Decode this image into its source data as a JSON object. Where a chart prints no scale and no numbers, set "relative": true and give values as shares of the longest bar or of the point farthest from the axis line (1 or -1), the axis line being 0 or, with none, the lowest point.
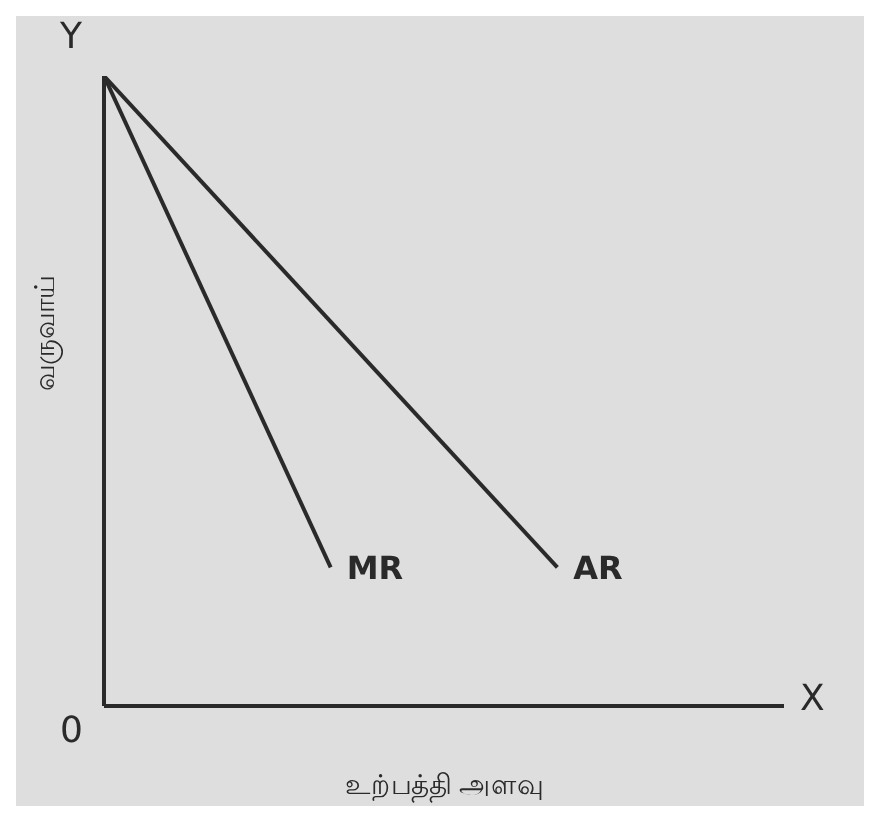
{
  "chart_data": {
    "type": "line",
    "relative": true,
    "xlabel": "உற்பத்தி அளவு",
    "ylabel": "வருவாய்",
    "annotations": [
      "Y",
      "X",
      "0"
    ],
    "categories": [
      null,
      null,
      null,
      null
    ],
    "series": [
      {
        "name": "MR",
        "color": "#2a2a2a",
        "values": [
          1,
          0.22,
          null,
          null
        ]
      },
      {
        "name": "AR",
        "color": "#2a2a2a",
        "values": [
          1,
          null,
          0.22,
          null
        ]
      }
    ],
    "grid": false,
    "legend": false,
    "marker": "none",
    "line_style": "solid"
  }
}
